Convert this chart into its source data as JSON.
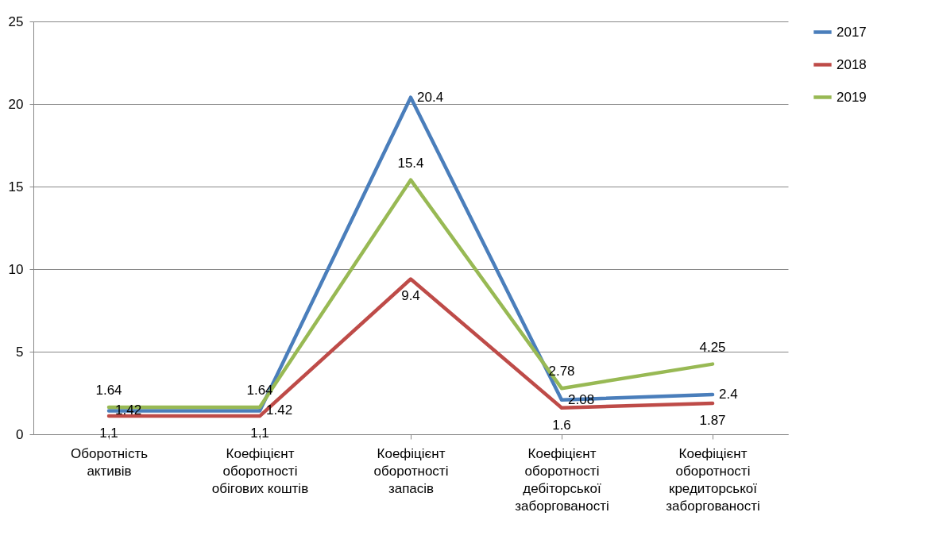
{
  "chart_data": {
    "type": "line",
    "categories": [
      "Оборотність активів",
      "Коефіцієнт оборотності обігових коштів",
      "Коефіцієнт оборотності запасів",
      "Коефіцієнт оборотності дебіторської заборгованості",
      "Коефіцієнт оборотності кредиторської заборгованості"
    ],
    "series": [
      {
        "name": "2017",
        "color": "#4a7ebb",
        "values": [
          1.42,
          1.42,
          20.4,
          2.08,
          2.4
        ]
      },
      {
        "name": "2018",
        "color": "#be4b48",
        "values": [
          1.1,
          1.1,
          9.4,
          1.6,
          1.87
        ]
      },
      {
        "name": "2019",
        "color": "#98b954",
        "values": [
          1.64,
          1.64,
          15.4,
          2.78,
          4.25
        ]
      }
    ],
    "ylim": [
      0,
      25
    ],
    "yticks": [
      0,
      5,
      10,
      15,
      20,
      25
    ],
    "grid": "y",
    "legend": "right",
    "data_labels": true
  }
}
